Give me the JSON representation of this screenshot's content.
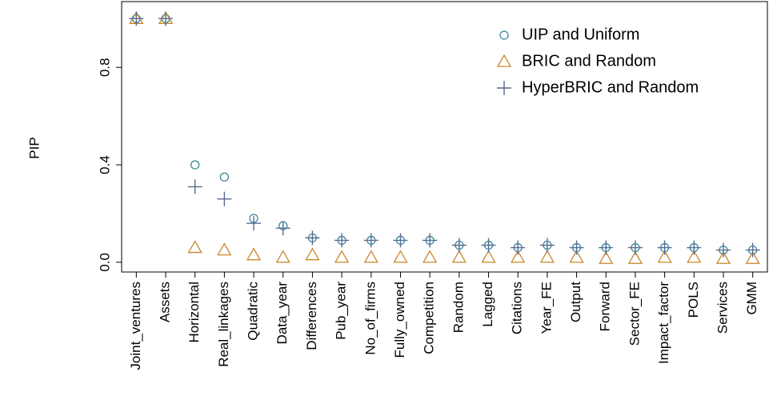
{
  "chart_data": {
    "type": "scatter",
    "ylabel": "PIP",
    "categories": [
      "Joint_ventures",
      "Assets",
      "Horizontal",
      "Real_linkages",
      "Quadratic",
      "Data_year",
      "Differences",
      "Pub_year",
      "No_of_firms",
      "Fully_owned",
      "Competition",
      "Random",
      "Lagged",
      "Citations",
      "Year_FE",
      "Output",
      "Forward",
      "Sector_FE",
      "Impact_factor",
      "POLS",
      "Services",
      "GMM"
    ],
    "series": [
      {
        "name": "UIP and Uniform",
        "color": "#3a8a9a",
        "marker": "circle",
        "values": [
          1.0,
          1.0,
          0.4,
          0.35,
          0.18,
          0.15,
          0.1,
          0.09,
          0.09,
          0.09,
          0.09,
          0.07,
          0.07,
          0.06,
          0.07,
          0.06,
          0.06,
          0.06,
          0.06,
          0.06,
          0.05,
          0.05
        ]
      },
      {
        "name": "BRIC and Random",
        "color": "#c8862a",
        "marker": "triangle",
        "values": [
          1.0,
          1.0,
          0.06,
          0.05,
          0.03,
          0.02,
          0.03,
          0.02,
          0.02,
          0.02,
          0.02,
          0.02,
          0.02,
          0.02,
          0.02,
          0.02,
          0.015,
          0.015,
          0.02,
          0.02,
          0.015,
          0.015
        ]
      },
      {
        "name": "HyperBRIC and Random",
        "color": "#5a6a90",
        "marker": "plus",
        "values": [
          1.0,
          1.0,
          0.31,
          0.26,
          0.16,
          0.14,
          0.1,
          0.09,
          0.09,
          0.09,
          0.09,
          0.07,
          0.07,
          0.06,
          0.07,
          0.06,
          0.06,
          0.06,
          0.06,
          0.06,
          0.05,
          0.05
        ]
      }
    ],
    "ylim": [
      -0.04,
      1.07
    ],
    "yticks": [
      {
        "value": 0,
        "label": "0.0"
      },
      0.4,
      0.8
    ],
    "legend": "top-right"
  }
}
